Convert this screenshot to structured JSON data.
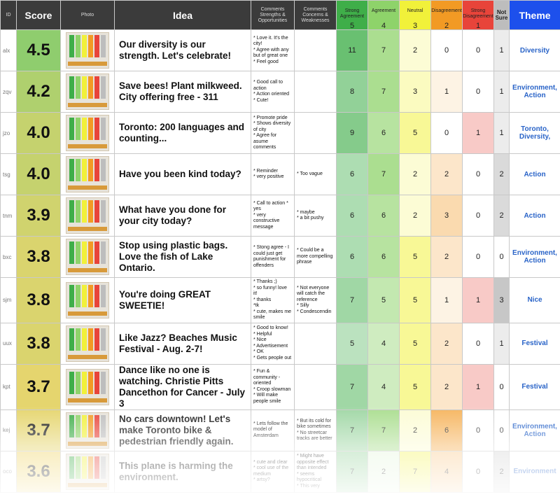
{
  "header": {
    "id": "ID",
    "score": "Score",
    "photo": "Photo",
    "idea": "Idea",
    "comments_strengths": "Comments\nStrengths &\nOpportunities",
    "comments_concerns": "Comments\nConcerns &\nWeaknesses",
    "strong_agreement": "Strong Agreement",
    "strong_agreement_num": "5",
    "agreement": "Agreement",
    "agreement_num": "4",
    "neutral": "Neutral",
    "neutral_num": "3",
    "disagreement": "Disagreement",
    "disagreement_num": "2",
    "strong_disagreement": "Strong Disagreement",
    "strong_disagreement_num": "1",
    "not_sure": "Not Sure",
    "theme": "Theme"
  },
  "colors": {
    "strong_agreement": "#3fae49",
    "agreement": "#8ed36a",
    "neutral": "#f1f13a",
    "disagreement": "#f29a24",
    "strong_disagreement": "#e8443a",
    "not_sure": "#bdbdbd",
    "theme_header": "#1d50ec",
    "theme_text": "#2a64c8"
  },
  "rows": [
    {
      "id": "alx",
      "score": "4.5",
      "idea": "Our diversity is our strength. Let's celebrate!",
      "strengths": "* Love it. It's the city!\n* Agree with any but of great one\n* Feel good",
      "concerns": "",
      "sa": "11",
      "a": "7",
      "n": "2",
      "d": "0",
      "sd": "0",
      "ns": "1",
      "theme": "Diversity"
    },
    {
      "id": "zqv",
      "score": "4.2",
      "idea": "Save bees! Plant milkweed. City offering free - 311",
      "strengths": "* Good call to action\n* Action oriented\n* Cute!",
      "concerns": "",
      "sa": "8",
      "a": "7",
      "n": "3",
      "d": "1",
      "sd": "0",
      "ns": "1",
      "theme": "Environment, Action"
    },
    {
      "id": "jzo",
      "score": "4.0",
      "idea": "Toronto: 200 languages and counting...",
      "strengths": "* Promote pride\n* Shows diversity of city\n* Agree for asume comments",
      "concerns": "",
      "sa": "9",
      "a": "6",
      "n": "5",
      "d": "0",
      "sd": "1",
      "ns": "1",
      "theme": "Toronto, Diversity,"
    },
    {
      "id": "tsg",
      "score": "4.0",
      "idea": "Have you been kind today?",
      "strengths": "* Reminder\n* very positive",
      "concerns": "* Too vague",
      "sa": "6",
      "a": "7",
      "n": "2",
      "d": "2",
      "sd": "0",
      "ns": "2",
      "theme": "Action"
    },
    {
      "id": "tnm",
      "score": "3.9",
      "idea": "What have you done for your city today?",
      "strengths": "* Call to action * yes\n* very constructive message",
      "concerns": "* maybe\n* a bit pushy",
      "sa": "6",
      "a": "6",
      "n": "2",
      "d": "3",
      "sd": "0",
      "ns": "2",
      "theme": "Action"
    },
    {
      "id": "bxc",
      "score": "3.8",
      "idea": "Stop using plastic bags. Love the fish of Lake Ontario.",
      "strengths": "* Stong agree - I could just get punishment for offenders",
      "concerns": "* Could be a more compelling phrase",
      "sa": "6",
      "a": "6",
      "n": "5",
      "d": "2",
      "sd": "0",
      "ns": "0",
      "theme": "Environment, Action"
    },
    {
      "id": "sjm",
      "score": "3.8",
      "idea": "You're doing GREAT SWEETIE!",
      "strengths": "* Thanks ;)\n* so funny! love it!\n* thanks\n*tk\n* cute, makes me smile",
      "concerns": "* Not everyone will catch the reference\n* Silly\n* Condescendin",
      "sa": "7",
      "a": "5",
      "n": "5",
      "d": "1",
      "sd": "1",
      "ns": "3",
      "theme": "Nice"
    },
    {
      "id": "uux",
      "score": "3.8",
      "idea": "Like Jazz? Beaches Music Festival - Aug. 2-7!",
      "strengths": "* Good to know!\n* Helpful\n* Nice\n* Advertisement\n* OK\n* Gets people out",
      "concerns": "",
      "sa": "5",
      "a": "4",
      "n": "5",
      "d": "2",
      "sd": "0",
      "ns": "1",
      "theme": "Festival"
    },
    {
      "id": "kpt",
      "score": "3.7",
      "idea": "Dance like no one is watching. Christie Pitts Dancethon for Cancer - July 3",
      "strengths": "* Fun & community - oriented\n* Croop slowman\n* Will make people smile",
      "concerns": "",
      "sa": "7",
      "a": "4",
      "n": "5",
      "d": "2",
      "sd": "1",
      "ns": "0",
      "theme": "Festival"
    },
    {
      "id": "kej",
      "score": "3.7",
      "idea": "No cars downtown! Let's make Toronto bike & pedestrian friendly again.",
      "strengths": "* Lets follow the model of Amsterdam",
      "concerns": "* But its cold for bike sometimes\n* No streetcar tracks are better",
      "sa": "7",
      "a": "7",
      "n": "2",
      "d": "6",
      "sd": "0",
      "ns": "0",
      "theme": "Environment, Action"
    },
    {
      "id": "oco",
      "score": "3.6",
      "idea": "This plane is harming the environment.",
      "strengths": "* cute and clear\n* cool use of the medium\n* artsy?",
      "concerns": "* Might have opposite effect than intended\n* seems hypocritical\n* This very",
      "sa": "7",
      "a": "2",
      "n": "7",
      "d": "4",
      "sd": "0",
      "ns": "2",
      "theme": "Environment"
    }
  ]
}
